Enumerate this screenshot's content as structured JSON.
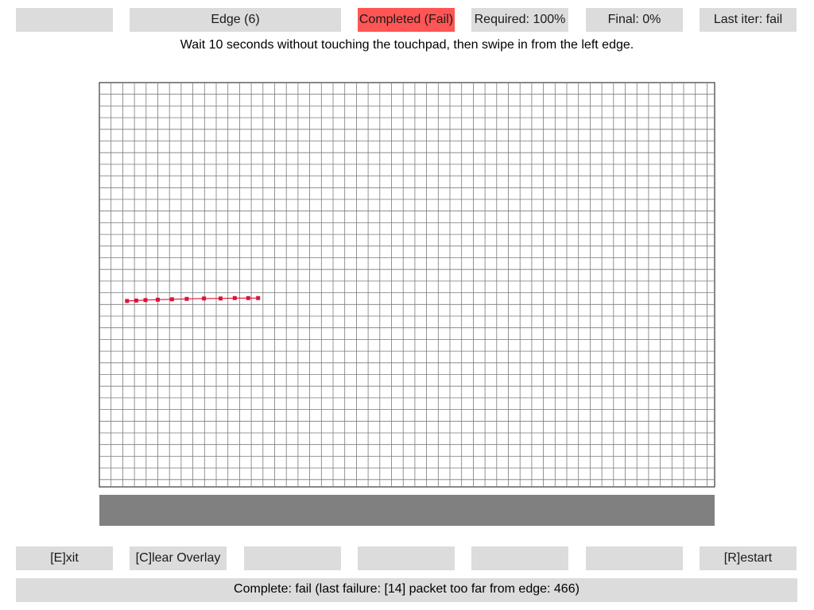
{
  "top_bar": [
    {
      "name": "top-slot-blank-1",
      "label": "",
      "status": "normal"
    },
    {
      "name": "test-name-label",
      "label": "Edge (6)",
      "status": "normal"
    },
    {
      "name": "completed-status-badge",
      "label": "Completed (Fail)",
      "status": "fail"
    },
    {
      "name": "required-label",
      "label": "Required: 100%",
      "status": "normal"
    },
    {
      "name": "final-label",
      "label": "Final: 0%",
      "status": "normal"
    },
    {
      "name": "last-iter-label",
      "label": "Last iter: fail",
      "status": "normal"
    }
  ],
  "instruction": "Wait 10 seconds without touching the touchpad, then swipe in from the left edge.",
  "touch_trace": {
    "color": "#dc143c",
    "points": [
      [
        0.045,
        0.54
      ],
      [
        0.06,
        0.539
      ],
      [
        0.075,
        0.538
      ],
      [
        0.095,
        0.537
      ],
      [
        0.118,
        0.536
      ],
      [
        0.142,
        0.535
      ],
      [
        0.17,
        0.534
      ],
      [
        0.197,
        0.534
      ],
      [
        0.22,
        0.533
      ],
      [
        0.242,
        0.533
      ],
      [
        0.258,
        0.533
      ]
    ]
  },
  "bottom_bar": [
    {
      "name": "exit-button",
      "label": "[E]xit",
      "interactable": true
    },
    {
      "name": "clear-overlay-button",
      "label": "[C]lear Overlay",
      "interactable": true
    },
    {
      "name": "bottom-slot-blank-1",
      "label": "",
      "interactable": false
    },
    {
      "name": "bottom-slot-blank-2",
      "label": "",
      "interactable": false
    },
    {
      "name": "bottom-slot-blank-3",
      "label": "",
      "interactable": false
    },
    {
      "name": "bottom-slot-blank-4",
      "label": "",
      "interactable": false
    },
    {
      "name": "restart-button",
      "label": "[R]estart",
      "interactable": true
    }
  ],
  "status_message": "Complete: fail (last failure: [14] packet too far from edge: 466)",
  "colors": {
    "cell_bg": "#dcdcdc",
    "fail_bg": "#ff5555",
    "grid_line": "#7a7a7a",
    "trace": "#dc143c",
    "gray_bar": "#808080"
  }
}
